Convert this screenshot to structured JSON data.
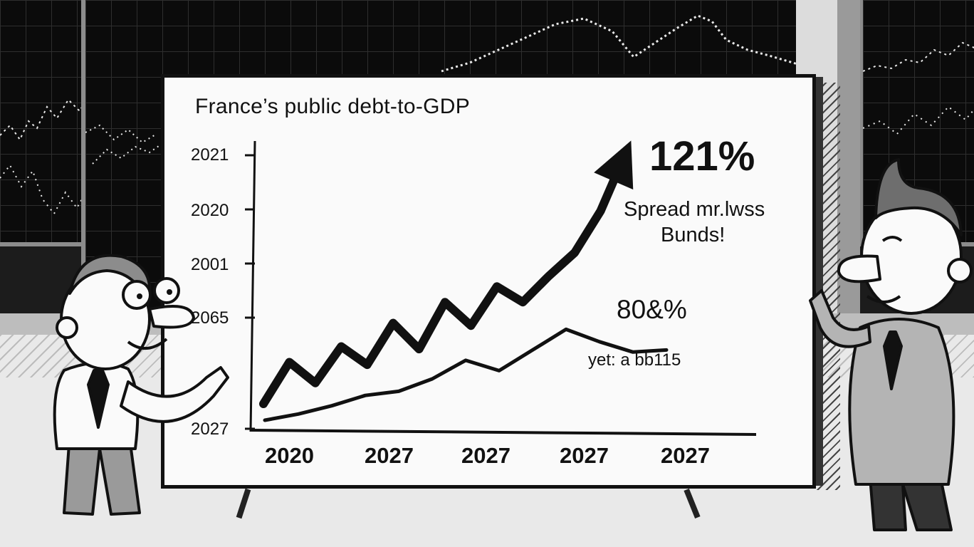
{
  "chart_data": {
    "type": "line",
    "title": "France’s public debt-to-GDP",
    "y_tick_labels": [
      "2021",
      "2020",
      "2001",
      "2065",
      "2027"
    ],
    "x_tick_labels": [
      "2020",
      "2027",
      "2027",
      "2027",
      "2027"
    ],
    "annotations": {
      "upper_value": "121%",
      "note_line1": "Spread mr.lwss",
      "note_line2": "Bunds!",
      "lower_value": "80&%",
      "lower_sub": "yet: a bb115"
    },
    "series": [
      {
        "style": "thick-arrow",
        "values": [
          0.03,
          0.19,
          0.11,
          0.25,
          0.18,
          0.34,
          0.24,
          0.42,
          0.33,
          0.48,
          0.42,
          0.52,
          0.61,
          0.77,
          1.0
        ]
      },
      {
        "style": "thin",
        "values": [
          0.0,
          0.03,
          0.07,
          0.12,
          0.14,
          0.2,
          0.29,
          0.24,
          0.34,
          0.44,
          0.38,
          0.33,
          0.34
        ]
      }
    ]
  },
  "colors": {
    "ink": "#111111",
    "board": "#fafafa",
    "window": "#0b0b0b"
  }
}
